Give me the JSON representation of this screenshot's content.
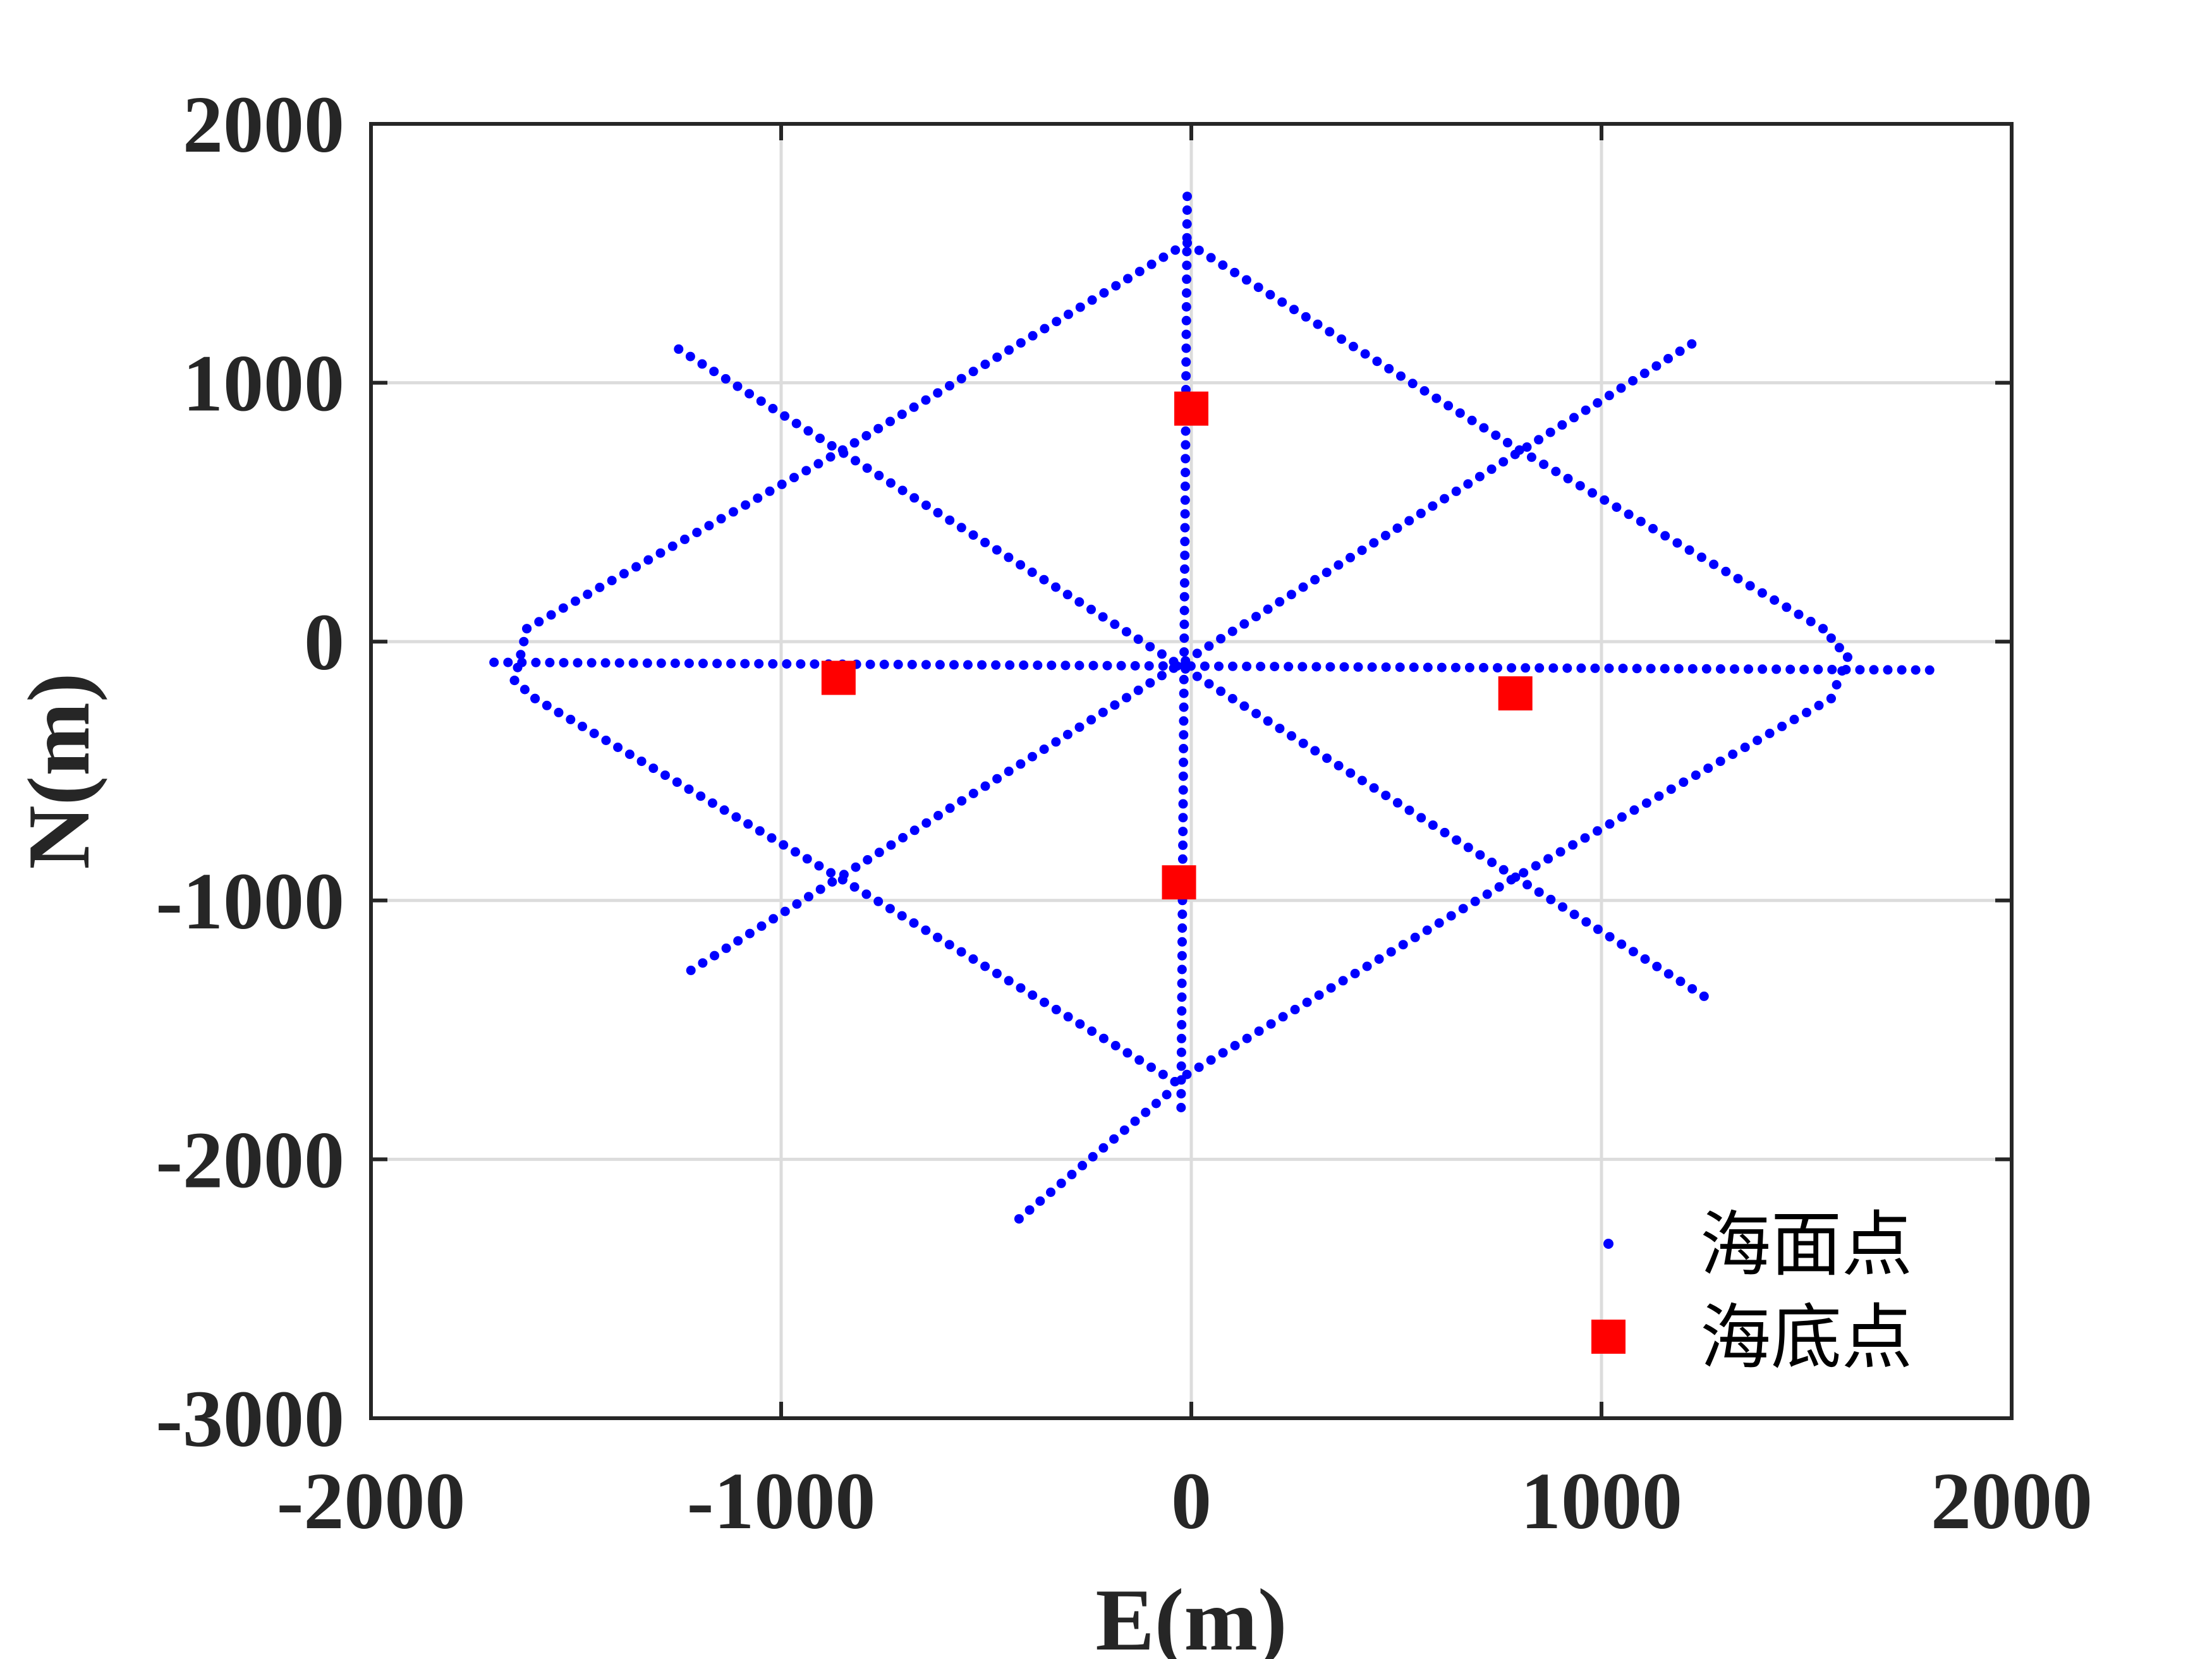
{
  "chart_data": {
    "type": "scatter",
    "xlabel": "E(m)",
    "ylabel": "N(m)",
    "xlim": [
      -2000,
      2000
    ],
    "ylim": [
      -3000,
      2000
    ],
    "xticks": [
      -2000,
      -1000,
      0,
      1000,
      2000
    ],
    "yticks": [
      2000,
      1000,
      0,
      -1000,
      -2000,
      -3000
    ],
    "xtick_labels": [
      "-2000",
      "-1000",
      "0",
      "1000",
      "2000"
    ],
    "ytick_labels": [
      "2000",
      "1000",
      "0",
      "-1000",
      "-2000",
      "-3000"
    ],
    "grid": true,
    "legend_position": "bottom-right",
    "series": [
      {
        "name": "海面点",
        "marker": "dot",
        "color": "#0000ff",
        "tracks": [
          {
            "from": [
              -1250,
              1130
            ],
            "to": [
              1250,
              -1370
            ]
          },
          {
            "from": [
              -1220,
              -1270
            ],
            "to": [
              1220,
              1150
            ]
          },
          {
            "from": [
              -1700,
              -80
            ],
            "to": [
              1800,
              -110
            ]
          },
          {
            "from": [
              -10,
              1720
            ],
            "to": [
              -25,
              -1800
            ]
          },
          {
            "path": [
              [
                -10,
                1540
              ],
              [
                -850,
                740
              ],
              [
                -1620,
                50
              ],
              [
                -1650,
                -150
              ],
              [
                -1600,
                -220
              ],
              [
                -850,
                -920
              ],
              [
                -40,
                -1700
              ],
              [
                780,
                -920
              ],
              [
                1560,
                -220
              ],
              [
                1600,
                -60
              ],
              [
                1540,
                50
              ],
              [
                800,
                740
              ],
              [
                -10,
                1540
              ]
            ]
          },
          {
            "from": [
              -420,
              -2230
            ],
            "to": [
              -60,
              -1750
            ]
          }
        ]
      },
      {
        "name": "海底点",
        "marker": "square",
        "color": "#ff0000",
        "points": [
          {
            "x": 0,
            "y": 900
          },
          {
            "x": -860,
            "y": -140
          },
          {
            "x": 790,
            "y": -200
          },
          {
            "x": -30,
            "y": -930
          }
        ]
      }
    ]
  },
  "legend": {
    "surface_label": "海面点",
    "seabed_label": "海底点"
  }
}
